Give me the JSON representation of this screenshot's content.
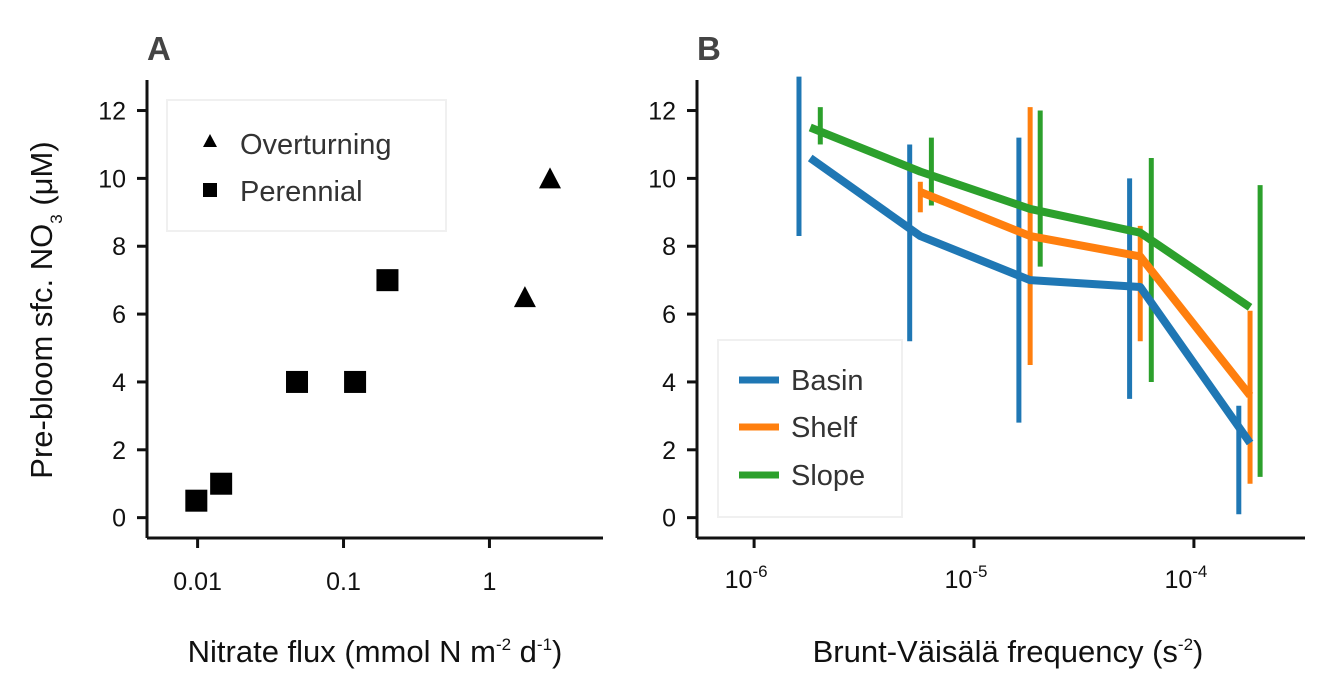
{
  "chart_data": [
    {
      "panel": "A",
      "type": "scatter",
      "xlabel_prefix": "Nitrate flux (mmol N m",
      "xlabel_exp1": "-2",
      "xlabel_mid": " d",
      "xlabel_exp2": "-1",
      "xlabel_suffix": ")",
      "ylabel_prefix": "Pre-bloom sfc. NO",
      "ylabel_sub": "3",
      "ylabel_suffix": " (μM)",
      "x_scale": "log",
      "xlim": [
        0.0045,
        6
      ],
      "ylim": [
        -0.6,
        12.9
      ],
      "x_ticks": [
        0.01,
        0.1,
        1
      ],
      "x_tick_labels": [
        "0.01",
        "0.1",
        "1"
      ],
      "y_ticks": [
        0,
        2,
        4,
        6,
        8,
        10,
        12
      ],
      "y_tick_labels": [
        "0",
        "2",
        "4",
        "6",
        "8",
        "10",
        "12"
      ],
      "legend_position": "top-left",
      "series": [
        {
          "name": "Overturning",
          "marker": "triangle",
          "color": "#000000",
          "points": [
            {
              "x": 1.75,
              "y": 6.5
            },
            {
              "x": 2.6,
              "y": 10.0
            }
          ]
        },
        {
          "name": "Perennial",
          "marker": "square",
          "color": "#000000",
          "points": [
            {
              "x": 0.0098,
              "y": 0.5
            },
            {
              "x": 0.0145,
              "y": 1.0
            },
            {
              "x": 0.048,
              "y": 4.0
            },
            {
              "x": 0.12,
              "y": 4.0
            },
            {
              "x": 0.2,
              "y": 7.0
            }
          ]
        }
      ]
    },
    {
      "panel": "B",
      "type": "line",
      "xlabel_prefix": "Brunt-Väisälä frequency (s",
      "xlabel_exp1": "-2",
      "xlabel_suffix": ")",
      "x_scale": "log",
      "xlim": [
        5.5e-07,
        0.00032
      ],
      "ylim": [
        -0.6,
        12.9
      ],
      "x_ticks": [
        1e-06,
        1e-05,
        0.0001
      ],
      "x_tick_base": [
        "10",
        "10",
        "10"
      ],
      "x_tick_exp": [
        "-6",
        "-5",
        "-4"
      ],
      "y_ticks": [
        0,
        2,
        4,
        6,
        8,
        10,
        12
      ],
      "y_tick_labels": [
        "0",
        "2",
        "4",
        "6",
        "8",
        "10",
        "12"
      ],
      "legend_position": "bottom-left",
      "series": [
        {
          "name": "Basin",
          "color": "#1f77b4",
          "x": [
            1.8e-06,
            5.7e-06,
            1.8e-05,
            5.7e-05,
            0.00018
          ],
          "y": [
            10.6,
            8.3,
            7.0,
            6.8,
            2.2
          ],
          "err_x": [
            1.6e-06,
            5.1e-06,
            1.6e-05,
            5.1e-05,
            0.00016
          ],
          "err_low": [
            8.3,
            5.2,
            2.8,
            3.5,
            0.1
          ],
          "err_high": [
            13.0,
            11.0,
            11.2,
            10.0,
            3.3
          ]
        },
        {
          "name": "Shelf",
          "color": "#ff7f0e",
          "x": [
            5.7e-06,
            1.8e-05,
            5.7e-05,
            0.00018
          ],
          "y": [
            9.6,
            8.3,
            7.7,
            3.6
          ],
          "err_x": [
            5.7e-06,
            1.8e-05,
            5.7e-05,
            0.00018
          ],
          "err_low": [
            9.0,
            4.5,
            5.2,
            1.0
          ],
          "err_high": [
            9.9,
            12.1,
            8.6,
            6.1
          ]
        },
        {
          "name": "Slope",
          "color": "#2ca02c",
          "x": [
            1.8e-06,
            5.7e-06,
            1.8e-05,
            5.7e-05,
            0.00018
          ],
          "y": [
            11.5,
            10.2,
            9.1,
            8.4,
            6.2
          ],
          "err_x": [
            2e-06,
            6.4e-06,
            2e-05,
            6.4e-05,
            0.0002
          ],
          "err_low": [
            11.0,
            9.2,
            7.4,
            4.0,
            1.2
          ],
          "err_high": [
            12.1,
            11.2,
            12.0,
            10.6,
            9.8
          ]
        }
      ]
    }
  ]
}
